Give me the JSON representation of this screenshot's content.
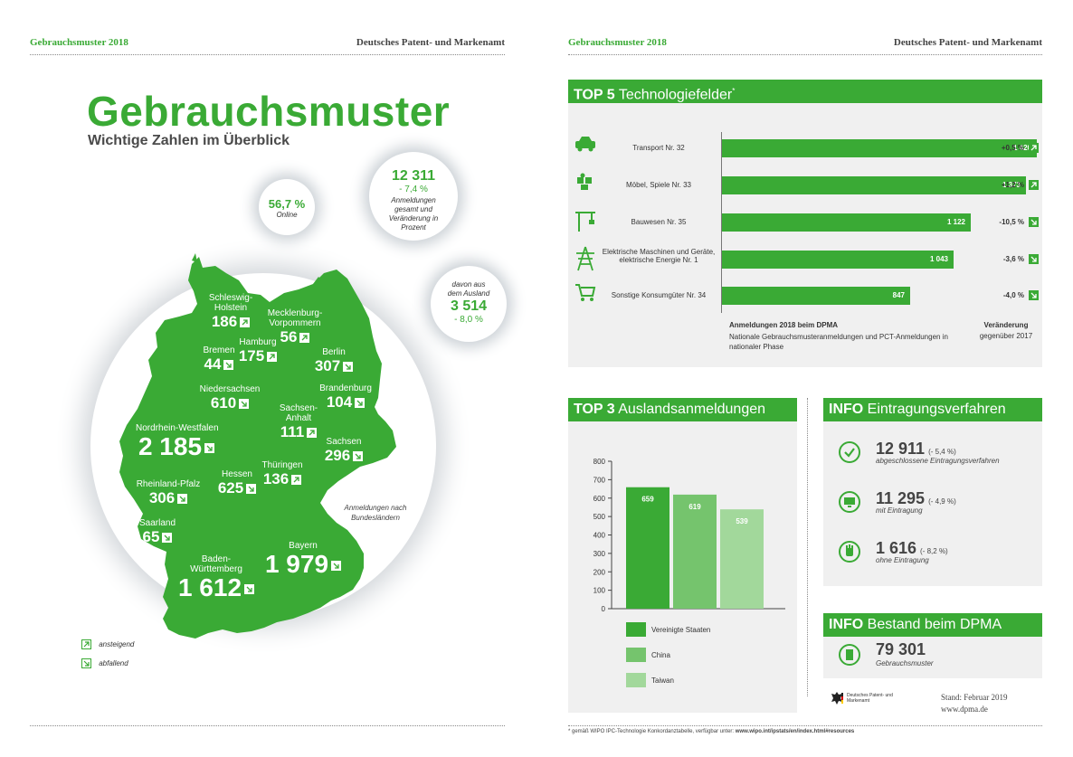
{
  "left_page": {
    "header_left": "Gebrauchsmuster 2018",
    "header_right": "Deutsches Patent- und Markenamt",
    "title": "Gebrauchsmuster",
    "subtitle": "Wichtige Zahlen im Überblick",
    "online": {
      "value": "56,7 %",
      "label": "Online"
    },
    "total": {
      "value": "12 311",
      "change": "- 7,4 %",
      "label": "Anmeldungen gesamt und Veränderung in Prozent"
    },
    "abroad": {
      "label": "davon aus dem Ausland",
      "value": "3 514",
      "change": "- 8,0 %"
    },
    "map_caption": "Anmeldungen nach Bundesländern",
    "states": [
      {
        "name": "Schleswig-Holstein",
        "value": "186",
        "trend": "up"
      },
      {
        "name": "Mecklenburg-Vorpommern",
        "value": "56",
        "trend": "up"
      },
      {
        "name": "Hamburg",
        "value": "175",
        "trend": "up"
      },
      {
        "name": "Bremen",
        "value": "44",
        "trend": "down"
      },
      {
        "name": "Berlin",
        "value": "307",
        "trend": "down"
      },
      {
        "name": "Niedersachsen",
        "value": "610",
        "trend": "down"
      },
      {
        "name": "Brandenburg",
        "value": "104",
        "trend": "down"
      },
      {
        "name": "Sachsen-Anhalt",
        "value": "111",
        "trend": "up"
      },
      {
        "name": "Nordrhein-Westfalen",
        "value": "2 185",
        "trend": "down"
      },
      {
        "name": "Sachsen",
        "value": "296",
        "trend": "down"
      },
      {
        "name": "Thüringen",
        "value": "136",
        "trend": "up"
      },
      {
        "name": "Hessen",
        "value": "625",
        "trend": "down"
      },
      {
        "name": "Rheinland-Pfalz",
        "value": "306",
        "trend": "down"
      },
      {
        "name": "Saarland",
        "value": "65",
        "trend": "down"
      },
      {
        "name": "Bayern",
        "value": "1 979",
        "trend": "down"
      },
      {
        "name": "Baden-Württemberg",
        "value": "1 612",
        "trend": "down"
      }
    ],
    "legend": {
      "up": "ansteigend",
      "down": "abfallend"
    }
  },
  "right_page": {
    "header_left": "Gebrauchsmuster 2018",
    "header_right": "Deutsches Patent- und Markenamt",
    "top5": {
      "title_bold": "TOP 5",
      "title_rest": "Technologiefelder",
      "title_mark": "*",
      "items": [
        {
          "label": "Transport Nr. 32",
          "value": "1 420",
          "change": "+0,5 %",
          "trend": "up",
          "icon": "car-icon",
          "num": 1420
        },
        {
          "label": "Möbel, Spiele Nr. 33",
          "value": "1 373",
          "change": "+1,2 %",
          "trend": "up",
          "icon": "puzzle-icon",
          "num": 1373
        },
        {
          "label": "Bauwesen Nr. 35",
          "value": "1 122",
          "change": "-10,5 %",
          "trend": "down",
          "icon": "crane-icon",
          "num": 1122
        },
        {
          "label": "Elektrische Maschinen und Geräte, elektrische Energie Nr. 1",
          "value": "1 043",
          "change": "-3,6 %",
          "trend": "down",
          "icon": "power-pylon-icon",
          "num": 1043
        },
        {
          "label": "Sonstige Konsumgüter Nr. 34",
          "value": "847",
          "change": "-4,0 %",
          "trend": "down",
          "icon": "shopping-cart-icon",
          "num": 847
        }
      ],
      "footer_title": "Anmeldungen 2018 beim DPMA",
      "footer_text": "Nationale Gebrauchsmusteranmeldungen und PCT-Anmeldungen in nationaler Phase",
      "change_title": "Veränderung",
      "change_text": "gegenüber 2017"
    },
    "top3": {
      "title_bold": "TOP 3",
      "title_rest": "Auslandsanmeldungen"
    },
    "info1": {
      "title_bold": "INFO",
      "title_rest": "Eintragungsverfahren",
      "items": [
        {
          "value": "12 911",
          "change": "(- 5,4 %)",
          "label": "abgeschlossene Eintragungsverfahren",
          "icon": "checkmark-icon"
        },
        {
          "value": "11 295",
          "change": "(- 4,9 %)",
          "label": "mit Eintragung",
          "icon": "monitor-icon"
        },
        {
          "value": "1 616",
          "change": "(- 8,2 %)",
          "label": "ohne Eintragung",
          "icon": "hand-stop-icon"
        }
      ]
    },
    "info2": {
      "title_bold": "INFO",
      "title_rest": "Bestand beim DPMA",
      "value": "79 301",
      "label": "Gebrauchsmuster"
    },
    "logo_text": "Deutsches Patent- und Markenamt",
    "stand": "Stand: Februar 2019",
    "url": "www.dpma.de",
    "footnote_prefix": "* gemäß WIPO IPC-Technologie Konkordanztabelle, verfügbar unter: ",
    "footnote_url": "www.wipo.int/ipstats/en/index.html#resources"
  },
  "chart_data": {
    "type": "bar",
    "categories": [
      "Vereinigte Staaten",
      "China",
      "Taiwan"
    ],
    "values": [
      659,
      619,
      539
    ],
    "value_labels": [
      "659",
      "619",
      "539"
    ],
    "ylim": [
      0,
      800
    ],
    "yticks": [
      "0",
      "100",
      "200",
      "300",
      "400",
      "500",
      "600",
      "700",
      "800"
    ],
    "colors": [
      "#3aaa35",
      "#75c46d",
      "#a2d89b"
    ],
    "grid": false,
    "legend": "bottom"
  }
}
